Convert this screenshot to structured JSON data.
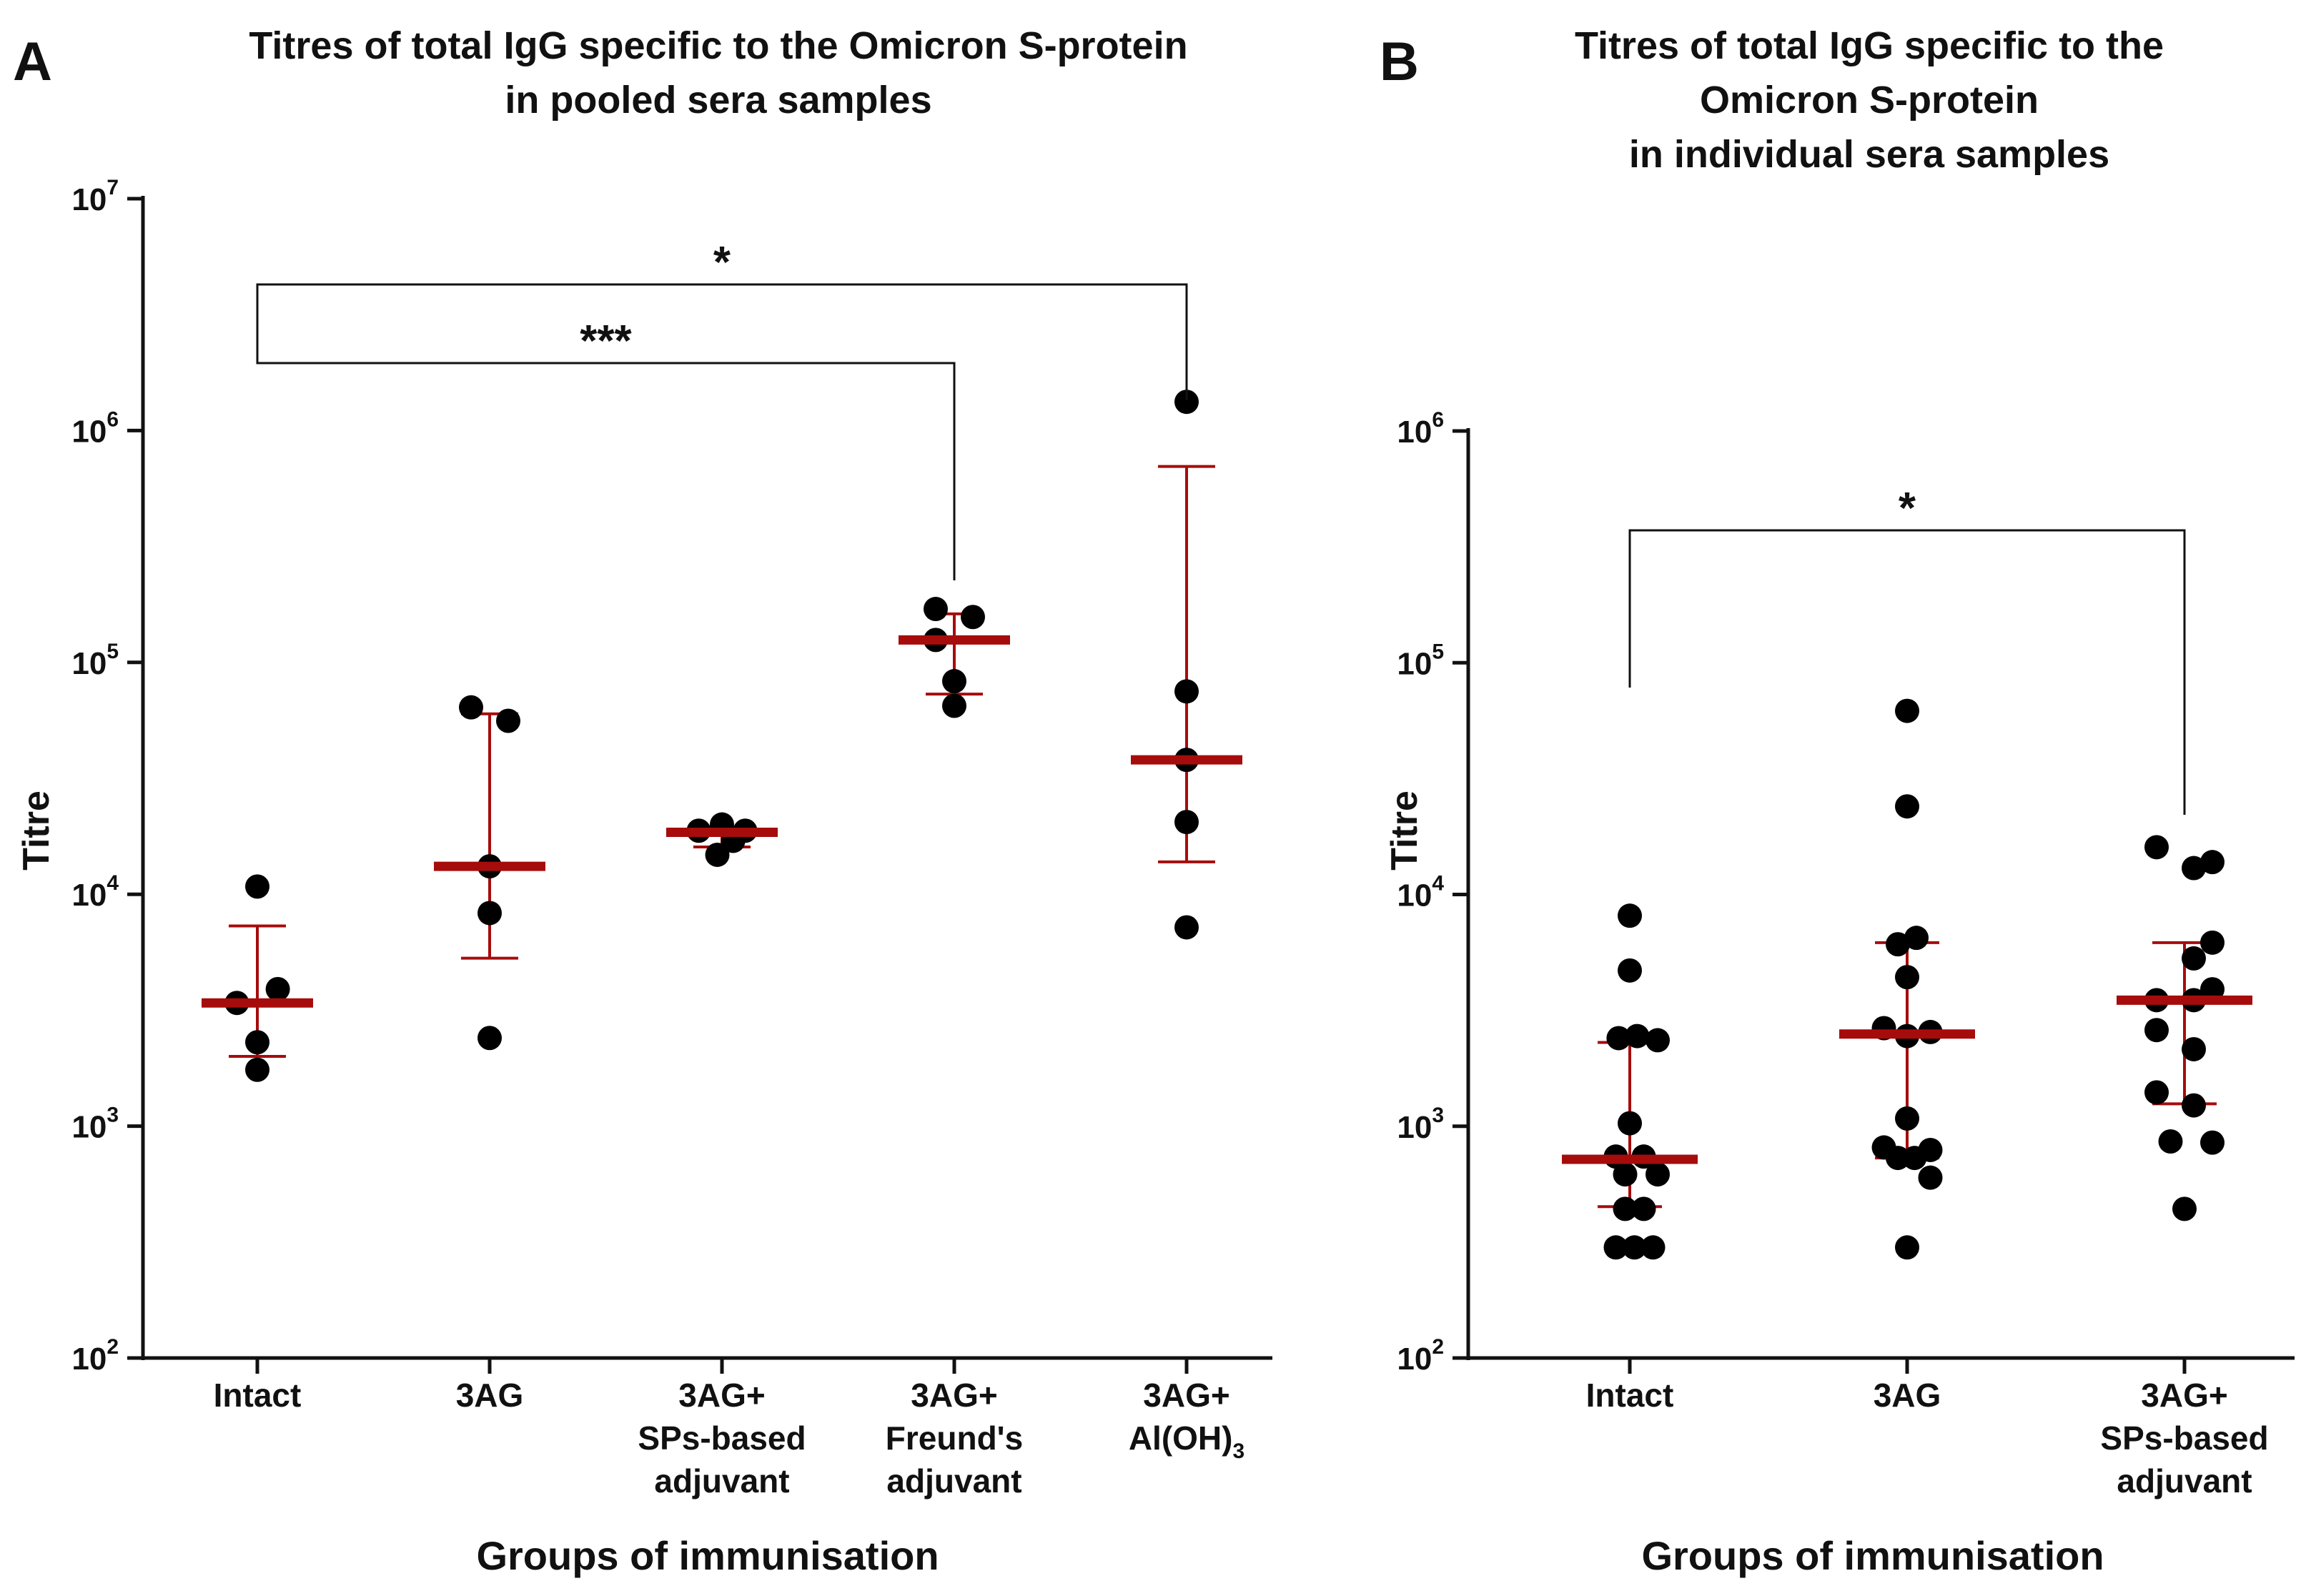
{
  "chart_data": [
    {
      "panel": "A",
      "type": "scatter",
      "title": [
        "Titres of total IgG specific to the Omicron S-protein",
        "in pooled sera samples"
      ],
      "xlabel": "Groups of immunisation",
      "ylabel": "Titre",
      "yscale": "log",
      "ylim": [
        100,
        10000000
      ],
      "yticks": [
        {
          "base": "10",
          "exp": "2"
        },
        {
          "base": "10",
          "exp": "3"
        },
        {
          "base": "10",
          "exp": "4"
        },
        {
          "base": "10",
          "exp": "5"
        },
        {
          "base": "10",
          "exp": "6"
        },
        {
          "base": "10",
          "exp": "7"
        }
      ],
      "categories": [
        {
          "lines": [
            "Intact"
          ]
        },
        {
          "lines": [
            "3AG"
          ]
        },
        {
          "lines": [
            "3AG+",
            "SPs-based",
            "adjuvant"
          ]
        },
        {
          "lines": [
            "3AG+",
            "Freund's",
            "adjuvant"
          ]
        },
        {
          "lines": [
            "3AG+",
            "Al(OH)"
          ],
          "subscript": "3"
        }
      ],
      "groups": [
        {
          "points": [
            {
              "v": 10800,
              "d": 0
            },
            {
              "v": 3900,
              "d": 0.22
            },
            {
              "v": 3400,
              "d": -0.22
            },
            {
              "v": 2300,
              "d": 0
            },
            {
              "v": 1750,
              "d": 0
            }
          ],
          "median": 3400,
          "err": [
            2000,
            7300
          ]
        },
        {
          "points": [
            {
              "v": 64000,
              "d": -0.2
            },
            {
              "v": 56000,
              "d": 0.2
            },
            {
              "v": 13200,
              "d": 0
            },
            {
              "v": 8300,
              "d": 0
            },
            {
              "v": 2400,
              "d": 0
            }
          ],
          "median": 13200,
          "err": [
            5300,
            60000
          ]
        },
        {
          "points": [
            {
              "v": 20000,
              "d": 0
            },
            {
              "v": 18800,
              "d": -0.25
            },
            {
              "v": 18800,
              "d": 0.25
            },
            {
              "v": 17000,
              "d": 0.12
            },
            {
              "v": 14800,
              "d": -0.05
            }
          ],
          "median": 18500,
          "err": [
            16000,
            19500
          ]
        },
        {
          "points": [
            {
              "v": 170000,
              "d": -0.2
            },
            {
              "v": 157000,
              "d": 0.2
            },
            {
              "v": 125000,
              "d": -0.2
            },
            {
              "v": 83000,
              "d": 0
            },
            {
              "v": 65000,
              "d": 0
            }
          ],
          "median": 125000,
          "err": [
            73000,
            162000
          ]
        },
        {
          "points": [
            {
              "v": 1330000,
              "d": 0
            },
            {
              "v": 75000,
              "d": 0
            },
            {
              "v": 38000,
              "d": 0
            },
            {
              "v": 20500,
              "d": 0
            },
            {
              "v": 7200,
              "d": 0
            }
          ],
          "median": 38000,
          "err": [
            13800,
            700000
          ]
        }
      ],
      "brackets": [
        {
          "from": 0,
          "to": 4,
          "label": "*"
        },
        {
          "from": 0,
          "to": 3,
          "label": "***"
        }
      ]
    },
    {
      "panel": "B",
      "type": "scatter",
      "title": [
        "Titres of total IgG specific to the",
        "Omicron S-protein",
        "in individual sera samples"
      ],
      "xlabel": "Groups of immunisation",
      "ylabel": "Titre",
      "yscale": "log",
      "ylim": [
        100,
        1000000
      ],
      "yticks": [
        {
          "base": "10",
          "exp": "2"
        },
        {
          "base": "10",
          "exp": "3"
        },
        {
          "base": "10",
          "exp": "4"
        },
        {
          "base": "10",
          "exp": "5"
        },
        {
          "base": "10",
          "exp": "6"
        }
      ],
      "categories": [
        {
          "lines": [
            "Intact"
          ]
        },
        {
          "lines": [
            "3AG"
          ]
        },
        {
          "lines": [
            "3AG+",
            "SPs-based",
            "adjuvant"
          ]
        }
      ],
      "groups": [
        {
          "points": [
            {
              "v": 8100,
              "d": 0
            },
            {
              "v": 4700,
              "d": 0
            },
            {
              "v": 2400,
              "d": -0.12
            },
            {
              "v": 2450,
              "d": 0.08
            },
            {
              "v": 2350,
              "d": 0.3
            },
            {
              "v": 1030,
              "d": 0
            },
            {
              "v": 740,
              "d": -0.15
            },
            {
              "v": 740,
              "d": 0.15
            },
            {
              "v": 620,
              "d": -0.05
            },
            {
              "v": 620,
              "d": 0.3
            },
            {
              "v": 440,
              "d": -0.05
            },
            {
              "v": 440,
              "d": 0.15
            },
            {
              "v": 300,
              "d": -0.15
            },
            {
              "v": 300,
              "d": 0.05
            },
            {
              "v": 300,
              "d": 0.25
            }
          ],
          "median": 720,
          "err": [
            450,
            2300
          ]
        },
        {
          "points": [
            {
              "v": 62000,
              "d": 0
            },
            {
              "v": 24000,
              "d": 0
            },
            {
              "v": 6500,
              "d": 0.1
            },
            {
              "v": 6100,
              "d": -0.1
            },
            {
              "v": 4400,
              "d": 0
            },
            {
              "v": 2650,
              "d": -0.25
            },
            {
              "v": 2550,
              "d": 0.25
            },
            {
              "v": 2450,
              "d": 0
            },
            {
              "v": 1080,
              "d": 0
            },
            {
              "v": 810,
              "d": -0.25
            },
            {
              "v": 790,
              "d": 0.25
            },
            {
              "v": 730,
              "d": -0.1
            },
            {
              "v": 730,
              "d": 0.08
            },
            {
              "v": 600,
              "d": 0.25
            },
            {
              "v": 300,
              "d": 0
            }
          ],
          "median": 2500,
          "err": [
            730,
            6200
          ]
        },
        {
          "points": [
            {
              "v": 16000,
              "d": -0.3
            },
            {
              "v": 13800,
              "d": 0.3
            },
            {
              "v": 13000,
              "d": 0.1
            },
            {
              "v": 6200,
              "d": 0.3
            },
            {
              "v": 5300,
              "d": 0.1
            },
            {
              "v": 3900,
              "d": 0.3
            },
            {
              "v": 3500,
              "d": -0.3
            },
            {
              "v": 3500,
              "d": 0.1
            },
            {
              "v": 2600,
              "d": -0.3
            },
            {
              "v": 2150,
              "d": 0.1
            },
            {
              "v": 1400,
              "d": -0.3
            },
            {
              "v": 1230,
              "d": 0.1
            },
            {
              "v": 860,
              "d": -0.15
            },
            {
              "v": 850,
              "d": 0.3
            },
            {
              "v": 440,
              "d": 0
            }
          ],
          "median": 3500,
          "err": [
            1250,
            6200
          ]
        }
      ],
      "brackets": [
        {
          "from": 0,
          "to": 2,
          "label": "*"
        }
      ]
    }
  ]
}
